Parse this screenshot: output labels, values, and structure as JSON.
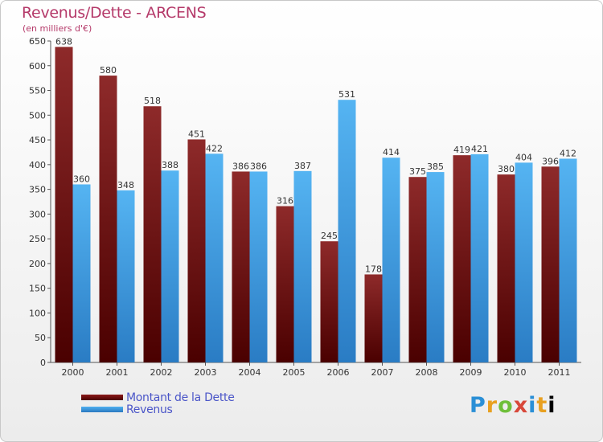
{
  "chart_data": {
    "type": "bar",
    "title": "Revenus/Dette - ARCENS",
    "subtitle": "(en milliers d'€)",
    "categories": [
      "2000",
      "2001",
      "2002",
      "2003",
      "2004",
      "2005",
      "2006",
      "2007",
      "2008",
      "2009",
      "2010",
      "2011"
    ],
    "series": [
      {
        "name": "Montant de la Dette",
        "color": "#8b1a1a",
        "values": [
          638,
          580,
          518,
          451,
          386,
          316,
          245,
          178,
          375,
          419,
          380,
          396
        ]
      },
      {
        "name": "Revenus",
        "color": "#3d9de0",
        "values": [
          360,
          348,
          388,
          422,
          386,
          387,
          531,
          414,
          385,
          421,
          404,
          412
        ]
      }
    ],
    "ylim": [
      0,
      650
    ],
    "yticks": [
      0,
      50,
      100,
      150,
      200,
      250,
      300,
      350,
      400,
      450,
      500,
      550,
      600,
      650
    ],
    "xlabel": "",
    "ylabel": "",
    "grid": false,
    "legend_position": "bottom-left"
  },
  "branding": {
    "logo_letters": [
      "P",
      "r",
      "o",
      "x",
      "i",
      "t",
      "i"
    ]
  }
}
